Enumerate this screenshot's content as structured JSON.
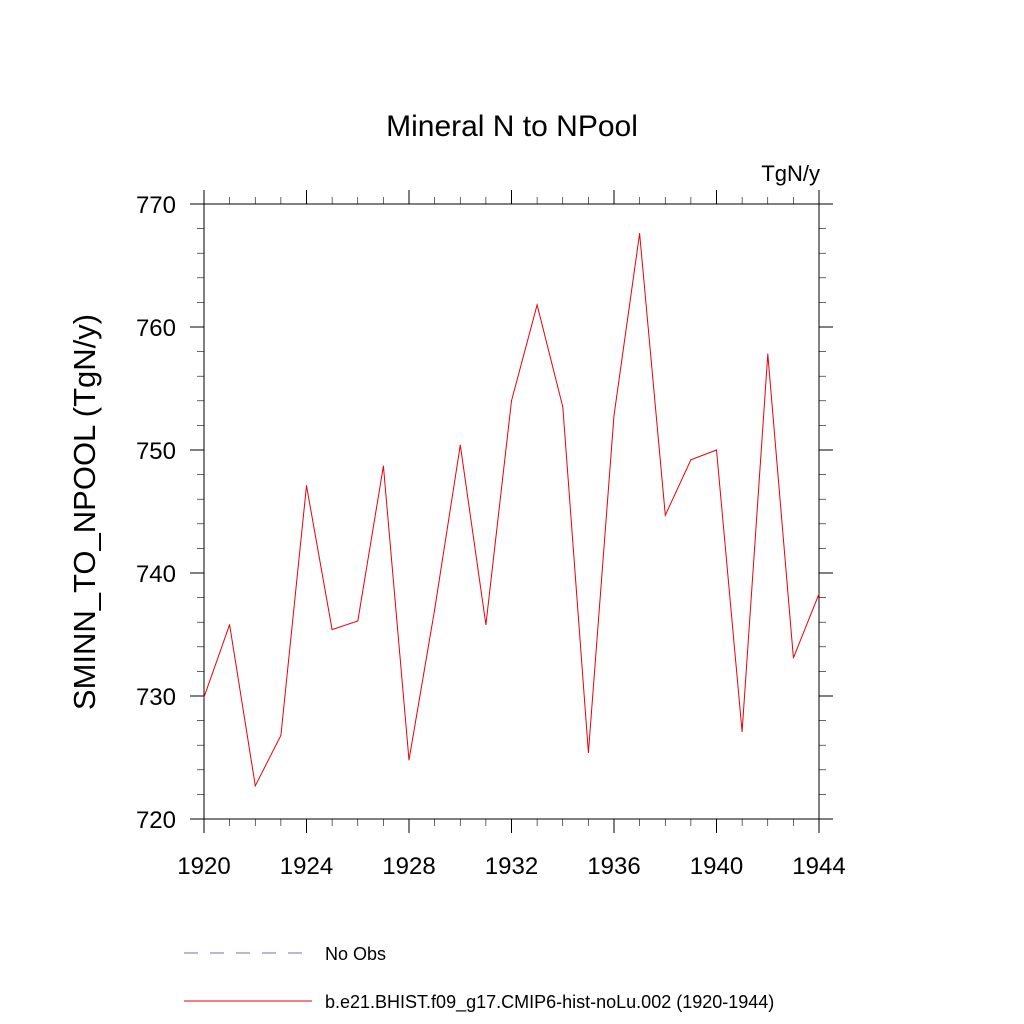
{
  "chart_data": {
    "type": "line",
    "title": "Mineral N to NPool",
    "units_label": "TgN/y",
    "ylabel": "SMINN_TO_NPOOL  (TgN/y)",
    "xlabel": "",
    "xlim": [
      1920,
      1944
    ],
    "ylim": [
      720,
      770
    ],
    "x_ticks": [
      1920,
      1924,
      1928,
      1932,
      1936,
      1940,
      1944
    ],
    "y_ticks": [
      720,
      730,
      740,
      750,
      760,
      770
    ],
    "grid": false,
    "series": [
      {
        "name": "b.e21.BHIST.f09_g17.CMIP6-hist-noLu.002 (1920-1944)",
        "color": "#e8000b",
        "style": "solid",
        "x": [
          1920,
          1921,
          1922,
          1923,
          1924,
          1925,
          1926,
          1927,
          1928,
          1929,
          1930,
          1931,
          1932,
          1933,
          1934,
          1935,
          1936,
          1937,
          1938,
          1939,
          1940,
          1941,
          1942,
          1943,
          1944
        ],
        "values": [
          729.9,
          735.8,
          722.7,
          726.8,
          747.1,
          735.4,
          736.1,
          748.7,
          724.8,
          737.0,
          750.4,
          735.8,
          754.0,
          761.8,
          753.5,
          725.4,
          752.8,
          767.6,
          744.7,
          749.2,
          750.0,
          727.1,
          757.8,
          733.1,
          738.3
        ]
      }
    ],
    "legend": {
      "placement": "bottom",
      "entries": [
        {
          "label": "No Obs",
          "color": "#7a6fb5",
          "style": "dashed"
        },
        {
          "label": "b.e21.BHIST.f09_g17.CMIP6-hist-noLu.002 (1920-1944)",
          "color": "#e8000b",
          "style": "solid"
        }
      ]
    }
  }
}
